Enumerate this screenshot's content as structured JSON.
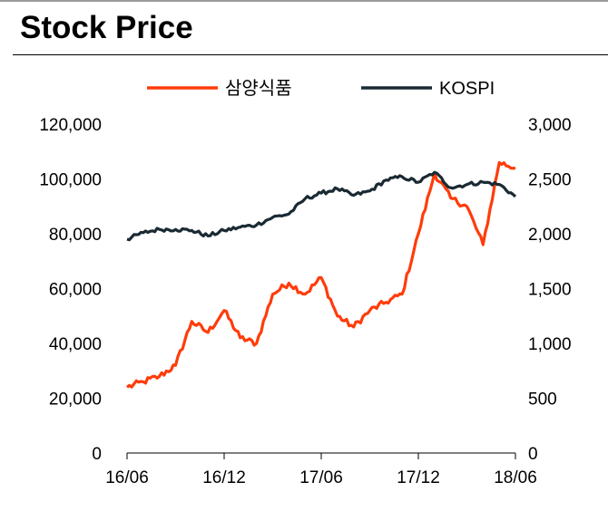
{
  "page": {
    "title": "Stock Price"
  },
  "chart_data": {
    "type": "line",
    "title": "Stock Price",
    "x_ticks": [
      "16/06",
      "16/12",
      "17/06",
      "17/12",
      "18/06"
    ],
    "x_range": [
      "2016-06",
      "2018-06"
    ],
    "ylim_left": [
      0,
      120000
    ],
    "ylim_right": [
      0,
      3000
    ],
    "y_ticks_left": [
      "0",
      "20,000",
      "40,000",
      "60,000",
      "80,000",
      "100,000",
      "120,000"
    ],
    "y_ticks_right": [
      "0",
      "500",
      "1,000",
      "1,500",
      "2,000",
      "2,500",
      "3,000"
    ],
    "legend": {
      "placement": "top"
    },
    "grid": false,
    "series": [
      {
        "name": "삼양식품",
        "axis": "left",
        "color": "#ff3c0a",
        "points": [
          [
            "2016-06",
            24000
          ],
          [
            "2016-07",
            26000
          ],
          [
            "2016-08",
            28000
          ],
          [
            "2016-09",
            32000
          ],
          [
            "2016-10",
            48000
          ],
          [
            "2016-11",
            44000
          ],
          [
            "2016-12",
            52000
          ],
          [
            "2017-01",
            42000
          ],
          [
            "2017-02",
            40000
          ],
          [
            "2017-03",
            58000
          ],
          [
            "2017-04",
            62000
          ],
          [
            "2017-05",
            58000
          ],
          [
            "2017-06",
            64000
          ],
          [
            "2017-07",
            50000
          ],
          [
            "2017-08",
            46000
          ],
          [
            "2017-09",
            52000
          ],
          [
            "2017-10",
            55000
          ],
          [
            "2017-11",
            58000
          ],
          [
            "2017-12",
            80000
          ],
          [
            "2018-01",
            102000
          ],
          [
            "2018-02",
            93000
          ],
          [
            "2018-03",
            90000
          ],
          [
            "2018-04",
            76000
          ],
          [
            "2018-05",
            106000
          ],
          [
            "2018-06",
            104000
          ]
        ]
      },
      {
        "name": "KOSPI",
        "axis": "right",
        "color": "#1a2a33",
        "points": [
          [
            "2016-06",
            1950
          ],
          [
            "2016-07",
            2010
          ],
          [
            "2016-08",
            2040
          ],
          [
            "2016-09",
            2040
          ],
          [
            "2016-10",
            2030
          ],
          [
            "2016-11",
            1980
          ],
          [
            "2016-12",
            2030
          ],
          [
            "2017-01",
            2060
          ],
          [
            "2017-02",
            2080
          ],
          [
            "2017-03",
            2150
          ],
          [
            "2017-04",
            2180
          ],
          [
            "2017-05",
            2320
          ],
          [
            "2017-06",
            2370
          ],
          [
            "2017-07",
            2410
          ],
          [
            "2017-08",
            2350
          ],
          [
            "2017-09",
            2390
          ],
          [
            "2017-10",
            2490
          ],
          [
            "2017-11",
            2520
          ],
          [
            "2017-12",
            2470
          ],
          [
            "2018-01",
            2560
          ],
          [
            "2018-02",
            2420
          ],
          [
            "2018-03",
            2450
          ],
          [
            "2018-04",
            2470
          ],
          [
            "2018-05",
            2450
          ],
          [
            "2018-06",
            2340
          ]
        ]
      }
    ]
  }
}
